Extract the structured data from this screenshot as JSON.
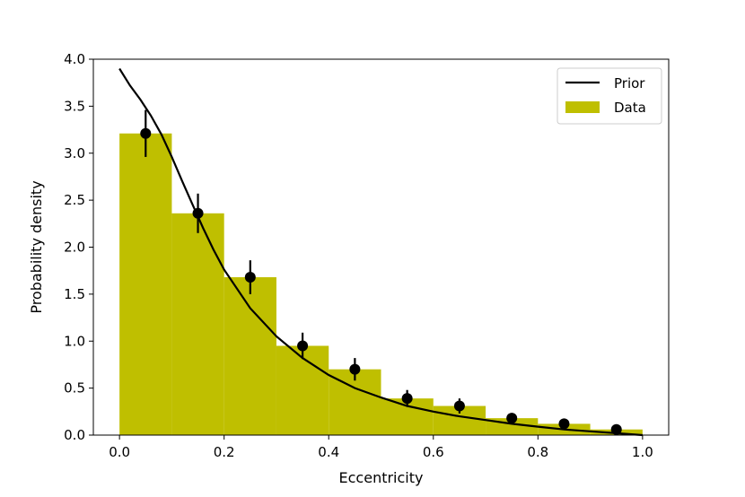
{
  "chart_data": {
    "type": "bar",
    "xlabel": "Eccentricity",
    "ylabel": "Probability density",
    "xlim": [
      -0.05,
      1.05
    ],
    "ylim": [
      0.0,
      4.0
    ],
    "xticks": [
      "0.0",
      "0.2",
      "0.4",
      "0.6",
      "0.8",
      "1.0"
    ],
    "yticks": [
      "0.0",
      "0.5",
      "1.0",
      "1.5",
      "2.0",
      "2.5",
      "3.0",
      "3.5",
      "4.0"
    ],
    "legend": {
      "position": "top-right",
      "entries": [
        "Prior",
        "Data"
      ]
    },
    "colors": {
      "bars": "#bfbf00",
      "prior": "#000000",
      "points": "#000000"
    },
    "histogram": {
      "name": "Data",
      "bin_edges": [
        0.0,
        0.1,
        0.2,
        0.3,
        0.4,
        0.5,
        0.6,
        0.7,
        0.8,
        0.9,
        1.0
      ],
      "values": [
        3.21,
        2.36,
        1.68,
        0.95,
        0.7,
        0.39,
        0.31,
        0.18,
        0.12,
        0.06
      ]
    },
    "points": {
      "x": [
        0.05,
        0.15,
        0.25,
        0.35,
        0.45,
        0.55,
        0.65,
        0.75,
        0.85,
        0.95
      ],
      "y": [
        3.21,
        2.36,
        1.68,
        0.95,
        0.7,
        0.39,
        0.31,
        0.18,
        0.12,
        0.06
      ],
      "yerr": [
        0.25,
        0.21,
        0.18,
        0.14,
        0.12,
        0.09,
        0.08,
        0.05,
        0.04,
        0.02
      ]
    },
    "prior": {
      "name": "Prior",
      "x": [
        0.0,
        0.02,
        0.04,
        0.06,
        0.08,
        0.1,
        0.12,
        0.14,
        0.16,
        0.18,
        0.2,
        0.25,
        0.3,
        0.35,
        0.4,
        0.45,
        0.5,
        0.55,
        0.6,
        0.65,
        0.7,
        0.75,
        0.8,
        0.85,
        0.9,
        0.95,
        1.0
      ],
      "y": [
        3.9,
        3.72,
        3.57,
        3.4,
        3.2,
        2.96,
        2.7,
        2.45,
        2.2,
        1.97,
        1.76,
        1.35,
        1.05,
        0.82,
        0.64,
        0.5,
        0.4,
        0.31,
        0.25,
        0.2,
        0.16,
        0.12,
        0.09,
        0.06,
        0.04,
        0.02,
        0.0
      ]
    }
  }
}
